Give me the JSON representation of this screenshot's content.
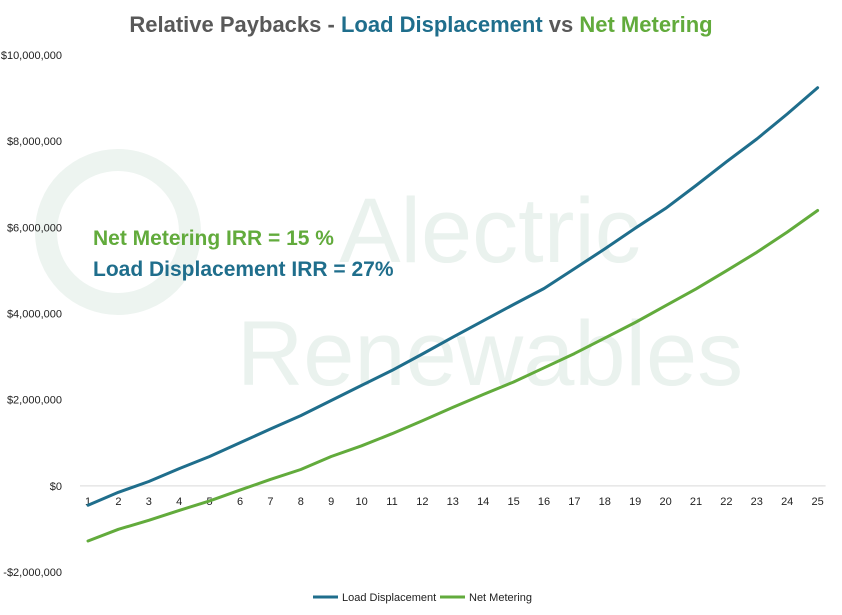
{
  "chart_data": {
    "type": "line",
    "title_parts": [
      {
        "text": "Relative Paybacks - ",
        "color": "#595959"
      },
      {
        "text": "Load Displacement",
        "color": "#1f6e8c"
      },
      {
        "text": " vs ",
        "color": "#595959"
      },
      {
        "text": "Net Metering",
        "color": "#62ab3c"
      }
    ],
    "watermark": [
      "Alectric",
      "Renewables"
    ],
    "annotations": [
      {
        "text": "Net Metering IRR = 15 %",
        "color": "#62ab3c"
      },
      {
        "text": "Load Displacement IRR = 27%",
        "color": "#1f6e8c"
      }
    ],
    "categories": [
      "1",
      "2",
      "3",
      "4",
      "5",
      "6",
      "7",
      "8",
      "9",
      "10",
      "11",
      "12",
      "13",
      "14",
      "15",
      "16",
      "17",
      "18",
      "19",
      "20",
      "21",
      "22",
      "23",
      "24",
      "25"
    ],
    "ylim": [
      -2000000,
      10000000
    ],
    "yticks": [
      {
        "value": 10000000,
        "label": "$10,000,000"
      },
      {
        "value": 8000000,
        "label": "$8,000,000"
      },
      {
        "value": 6000000,
        "label": "$6,000,000"
      },
      {
        "value": 4000000,
        "label": "$4,000,000"
      },
      {
        "value": 2000000,
        "label": "$2,000,000"
      },
      {
        "value": 0,
        "label": "$0"
      },
      {
        "value": -2000000,
        "label": "-$2,000,000"
      }
    ],
    "grid": false,
    "legend_position": "bottom",
    "series": [
      {
        "name": "Load Displacement",
        "color": "#1f6e8c",
        "values": [
          -450000,
          -150000,
          100000,
          400000,
          680000,
          1000000,
          1320000,
          1630000,
          1980000,
          2330000,
          2680000,
          3060000,
          3450000,
          3830000,
          4210000,
          4580000,
          5040000,
          5500000,
          5980000,
          6440000,
          6970000,
          7520000,
          8050000,
          8630000,
          9240000
        ]
      },
      {
        "name": "Net Metering",
        "color": "#62ab3c",
        "values": [
          -1280000,
          -1010000,
          -800000,
          -570000,
          -350000,
          -100000,
          150000,
          380000,
          680000,
          930000,
          1210000,
          1510000,
          1820000,
          2120000,
          2410000,
          2740000,
          3070000,
          3430000,
          3790000,
          4180000,
          4570000,
          4990000,
          5420000,
          5890000,
          6390000
        ]
      }
    ]
  }
}
